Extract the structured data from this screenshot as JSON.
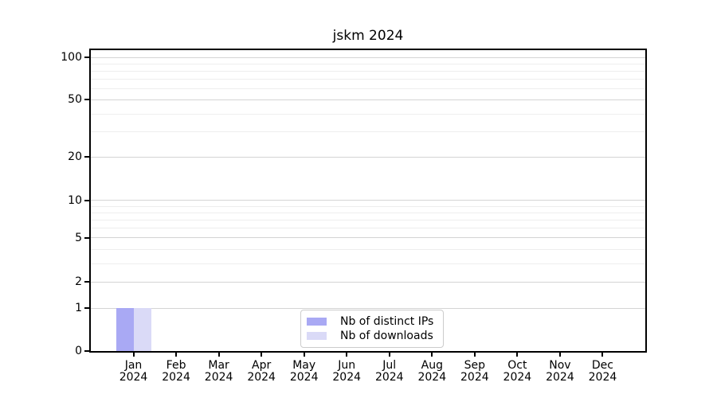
{
  "chart_data": {
    "type": "bar",
    "title": "jskm 2024",
    "categories": [
      "Jan",
      "Feb",
      "Mar",
      "Apr",
      "May",
      "Jun",
      "Jul",
      "Aug",
      "Sep",
      "Oct",
      "Nov",
      "Dec"
    ],
    "x_tick_year": "2024",
    "series": [
      {
        "name": "Nb of distinct IPs",
        "color": "#a9a9f4",
        "values": [
          1,
          0,
          0,
          0,
          0,
          0,
          0,
          0,
          0,
          0,
          0,
          0
        ]
      },
      {
        "name": "Nb of downloads",
        "color": "#dadaf7",
        "values": [
          1,
          0,
          0,
          0,
          0,
          0,
          0,
          0,
          0,
          0,
          0,
          0
        ]
      }
    ],
    "y_axis": {
      "scale": "pseudo-log",
      "ticks": [
        0,
        1,
        2,
        5,
        10,
        20,
        50,
        100
      ],
      "minor_ticks": [
        3,
        4,
        6,
        7,
        8,
        9,
        30,
        40,
        60,
        70,
        80,
        90
      ],
      "ylim": [
        0,
        112
      ]
    },
    "x_axis": {
      "slots": 13
    },
    "grid": {
      "major_color": "#d4d4d4",
      "minor_color": "#eeeeee"
    },
    "legend_position": "lower center",
    "background_color": "#ffffff",
    "axis_color": "#000000"
  }
}
